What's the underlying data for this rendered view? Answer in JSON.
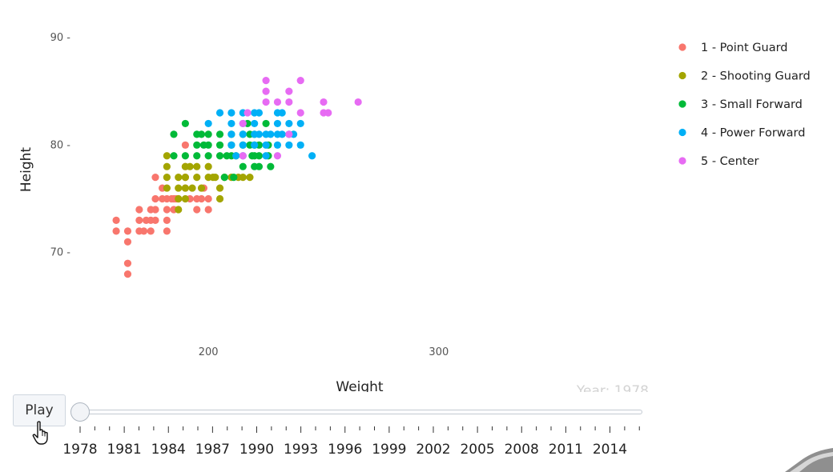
{
  "chart_data": {
    "type": "scatter",
    "xlabel": "Weight",
    "ylabel": "Height",
    "xlim": [
      120,
      380
    ],
    "ylim": [
      61.5,
      92
    ],
    "x_ticks": [
      200,
      300
    ],
    "x_tick_labels": [
      "200",
      "300"
    ],
    "y_ticks": [
      70,
      80,
      90
    ],
    "y_tick_labels": [
      "70 -",
      "80 -",
      "90 -"
    ],
    "grid": false,
    "legend_position": "top-right",
    "year_label": "Year: 1978",
    "series": [
      {
        "name": "1 - Point Guard",
        "color": "#F8766D",
        "points": [
          [
            160,
            73
          ],
          [
            160,
            72
          ],
          [
            165,
            72
          ],
          [
            165,
            71
          ],
          [
            165,
            69
          ],
          [
            165,
            68
          ],
          [
            170,
            74
          ],
          [
            170,
            73
          ],
          [
            170,
            72
          ],
          [
            172,
            72
          ],
          [
            173,
            73
          ],
          [
            175,
            74
          ],
          [
            175,
            73
          ],
          [
            175,
            72
          ],
          [
            177,
            77
          ],
          [
            177,
            75
          ],
          [
            177,
            74
          ],
          [
            177,
            73
          ],
          [
            180,
            76
          ],
          [
            180,
            75
          ],
          [
            182,
            75
          ],
          [
            182,
            74
          ],
          [
            182,
            73
          ],
          [
            182,
            72
          ],
          [
            184,
            75
          ],
          [
            185,
            75
          ],
          [
            185,
            74
          ],
          [
            186,
            75
          ],
          [
            187,
            75
          ],
          [
            190,
            80
          ],
          [
            190,
            78
          ],
          [
            190,
            77
          ],
          [
            190,
            76
          ],
          [
            192,
            75
          ],
          [
            195,
            75
          ],
          [
            195,
            74
          ],
          [
            197,
            75
          ],
          [
            198,
            76
          ],
          [
            200,
            75
          ],
          [
            200,
            74
          ]
        ]
      },
      {
        "name": "2 - Shooting Guard",
        "color": "#A3A500",
        "points": [
          [
            182,
            79
          ],
          [
            182,
            78
          ],
          [
            182,
            77
          ],
          [
            182,
            76
          ],
          [
            187,
            77
          ],
          [
            187,
            76
          ],
          [
            187,
            75
          ],
          [
            187,
            74
          ],
          [
            190,
            78
          ],
          [
            190,
            77
          ],
          [
            190,
            76
          ],
          [
            190,
            75
          ],
          [
            192,
            78
          ],
          [
            193,
            76
          ],
          [
            195,
            78
          ],
          [
            195,
            77
          ],
          [
            197,
            76
          ],
          [
            200,
            78
          ],
          [
            200,
            77
          ],
          [
            202,
            77
          ],
          [
            203,
            77
          ],
          [
            205,
            76
          ],
          [
            205,
            75
          ],
          [
            207,
            77
          ],
          [
            210,
            77
          ],
          [
            212,
            79
          ],
          [
            213,
            77
          ],
          [
            215,
            77
          ],
          [
            218,
            77
          ]
        ]
      },
      {
        "name": "3 - Small Forward",
        "color": "#00BA38",
        "points": [
          [
            185,
            81
          ],
          [
            185,
            79
          ],
          [
            190,
            82
          ],
          [
            190,
            79
          ],
          [
            195,
            81
          ],
          [
            195,
            80
          ],
          [
            195,
            79
          ],
          [
            197,
            81
          ],
          [
            198,
            80
          ],
          [
            200,
            81
          ],
          [
            200,
            80
          ],
          [
            200,
            79
          ],
          [
            205,
            81
          ],
          [
            205,
            80
          ],
          [
            205,
            79
          ],
          [
            207,
            77
          ],
          [
            208,
            79
          ],
          [
            210,
            81
          ],
          [
            210,
            80
          ],
          [
            210,
            79
          ],
          [
            211,
            77
          ],
          [
            215,
            81
          ],
          [
            215,
            80
          ],
          [
            215,
            78
          ],
          [
            217,
            82
          ],
          [
            218,
            81
          ],
          [
            218,
            80
          ],
          [
            219,
            79
          ],
          [
            220,
            81
          ],
          [
            220,
            80
          ],
          [
            220,
            79
          ],
          [
            220,
            78
          ],
          [
            222,
            80
          ],
          [
            222,
            79
          ],
          [
            222,
            78
          ],
          [
            225,
            82
          ],
          [
            226,
            80
          ],
          [
            226,
            79
          ],
          [
            227,
            78
          ]
        ]
      },
      {
        "name": "4 - Power Forward",
        "color": "#00B0F6",
        "points": [
          [
            200,
            82
          ],
          [
            205,
            83
          ],
          [
            210,
            83
          ],
          [
            210,
            82
          ],
          [
            210,
            81
          ],
          [
            210,
            80
          ],
          [
            212,
            79
          ],
          [
            215,
            83
          ],
          [
            215,
            82
          ],
          [
            215,
            81
          ],
          [
            215,
            80
          ],
          [
            215,
            79
          ],
          [
            220,
            83
          ],
          [
            220,
            82
          ],
          [
            220,
            81
          ],
          [
            220,
            80
          ],
          [
            222,
            83
          ],
          [
            222,
            81
          ],
          [
            225,
            81
          ],
          [
            225,
            80
          ],
          [
            225,
            79
          ],
          [
            227,
            81
          ],
          [
            230,
            83
          ],
          [
            230,
            82
          ],
          [
            230,
            81
          ],
          [
            230,
            80
          ],
          [
            232,
            83
          ],
          [
            232,
            81
          ],
          [
            235,
            82
          ],
          [
            235,
            81
          ],
          [
            235,
            80
          ],
          [
            237,
            81
          ],
          [
            240,
            82
          ],
          [
            240,
            80
          ],
          [
            245,
            79
          ]
        ]
      },
      {
        "name": "5 - Center",
        "color": "#E76BF3",
        "points": [
          [
            215,
            79
          ],
          [
            215,
            82
          ],
          [
            217,
            83
          ],
          [
            225,
            86
          ],
          [
            225,
            85
          ],
          [
            225,
            84
          ],
          [
            230,
            84
          ],
          [
            230,
            79
          ],
          [
            235,
            85
          ],
          [
            235,
            84
          ],
          [
            235,
            81
          ],
          [
            240,
            86
          ],
          [
            240,
            83
          ],
          [
            250,
            84
          ],
          [
            250,
            83
          ],
          [
            252,
            83
          ],
          [
            265,
            84
          ]
        ]
      }
    ],
    "legend": [
      {
        "label": "1 - Point Guard",
        "color": "#F8766D"
      },
      {
        "label": "2 - Shooting Guard",
        "color": "#A3A500"
      },
      {
        "label": "3 - Small Forward",
        "color": "#00BA38"
      },
      {
        "label": "4 - Power Forward",
        "color": "#00B0F6"
      },
      {
        "label": "5 - Center",
        "color": "#E76BF3"
      }
    ]
  },
  "controls": {
    "play_label": "Play",
    "slider_steps": [
      "1978",
      "1979",
      "1980",
      "1981",
      "1982",
      "1983",
      "1984",
      "1985",
      "1986",
      "1987",
      "1988",
      "1989",
      "1990",
      "1991",
      "1992",
      "1993",
      "1994",
      "1995",
      "1996",
      "1997",
      "1998",
      "1999",
      "2000",
      "2001",
      "2002",
      "2003",
      "2004",
      "2005",
      "2006",
      "2007",
      "2008",
      "2009",
      "2010",
      "2011",
      "2012",
      "2013",
      "2014",
      "2015",
      "2016"
    ],
    "slider_labels": [
      "1978",
      "1981",
      "1984",
      "1987",
      "1990",
      "1993",
      "1996",
      "1999",
      "2002",
      "2005",
      "2008",
      "2011",
      "2014"
    ],
    "slider_value": "1978",
    "cursor_icon": "hand-pointer-icon"
  }
}
